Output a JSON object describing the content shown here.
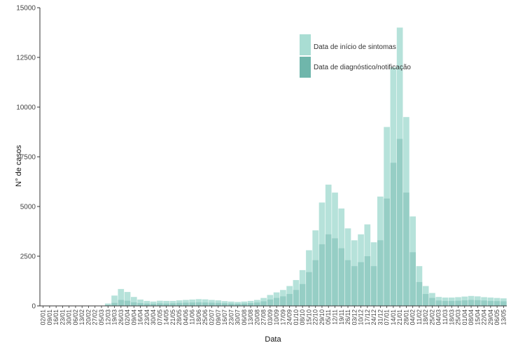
{
  "chart_data": {
    "type": "bar",
    "title": "",
    "xlabel": "Data",
    "ylabel": "N° de casos",
    "ylim": [
      0,
      15000
    ],
    "yticks": [
      0,
      2500,
      5000,
      7500,
      10000,
      12500,
      15000
    ],
    "grid": false,
    "legend_position": "top-right",
    "x_tick_labels": [
      "02/01",
      "09/01",
      "16/01",
      "23/01",
      "30/01",
      "06/02",
      "13/02",
      "20/02",
      "27/02",
      "05/03",
      "12/03",
      "19/03",
      "26/03",
      "02/04",
      "09/04",
      "16/04",
      "23/04",
      "30/04",
      "07/05",
      "14/05",
      "21/05",
      "28/05",
      "04/06",
      "11/06",
      "18/06",
      "25/06",
      "02/07",
      "09/07",
      "16/07",
      "23/07",
      "30/07",
      "06/08",
      "13/08",
      "20/08",
      "27/08",
      "03/09",
      "10/09",
      "17/09",
      "24/09",
      "01/10",
      "08/10",
      "15/10",
      "22/10",
      "29/10",
      "05/11",
      "12/11",
      "19/11",
      "26/11",
      "03/12",
      "10/12",
      "17/12",
      "24/12",
      "31/12",
      "07/01",
      "14/01",
      "21/01",
      "28/01",
      "04/02",
      "11/02",
      "18/02",
      "25/02",
      "04/03",
      "11/03",
      "18/03",
      "25/03",
      "01/04",
      "08/04",
      "15/04",
      "22/04",
      "29/04",
      "06/05",
      "13/05"
    ],
    "series": [
      {
        "name": "Data de início de sintomas",
        "color": "#a9ddd3",
        "values": [
          0,
          0,
          0,
          0,
          0,
          0,
          0,
          0,
          0,
          0,
          120,
          520,
          850,
          700,
          450,
          320,
          250,
          220,
          260,
          250,
          250,
          280,
          300,
          320,
          340,
          330,
          300,
          280,
          240,
          220,
          200,
          220,
          250,
          300,
          400,
          550,
          680,
          800,
          1000,
          1300,
          1800,
          2800,
          3800,
          5200,
          6100,
          5700,
          4900,
          3900,
          3300,
          3600,
          4100,
          3200,
          5500,
          9000,
          12000,
          14000,
          9500,
          4500,
          2000,
          1000,
          650,
          450,
          420,
          420,
          440,
          470,
          500,
          480,
          440,
          420,
          400,
          380
        ]
      },
      {
        "name": "Data de diagnóstico/notificação",
        "color": "#6fb6ab",
        "values": [
          0,
          0,
          0,
          0,
          0,
          0,
          0,
          0,
          0,
          0,
          40,
          150,
          300,
          260,
          180,
          140,
          120,
          110,
          130,
          120,
          130,
          150,
          160,
          170,
          180,
          170,
          160,
          150,
          130,
          120,
          110,
          120,
          140,
          170,
          230,
          320,
          400,
          480,
          600,
          800,
          1100,
          1700,
          2300,
          3100,
          3600,
          3400,
          2900,
          2300,
          2000,
          2200,
          2500,
          2000,
          3300,
          5400,
          7200,
          8400,
          5700,
          2700,
          1200,
          600,
          400,
          270,
          250,
          250,
          260,
          280,
          300,
          290,
          270,
          250,
          240,
          230
        ]
      }
    ]
  }
}
